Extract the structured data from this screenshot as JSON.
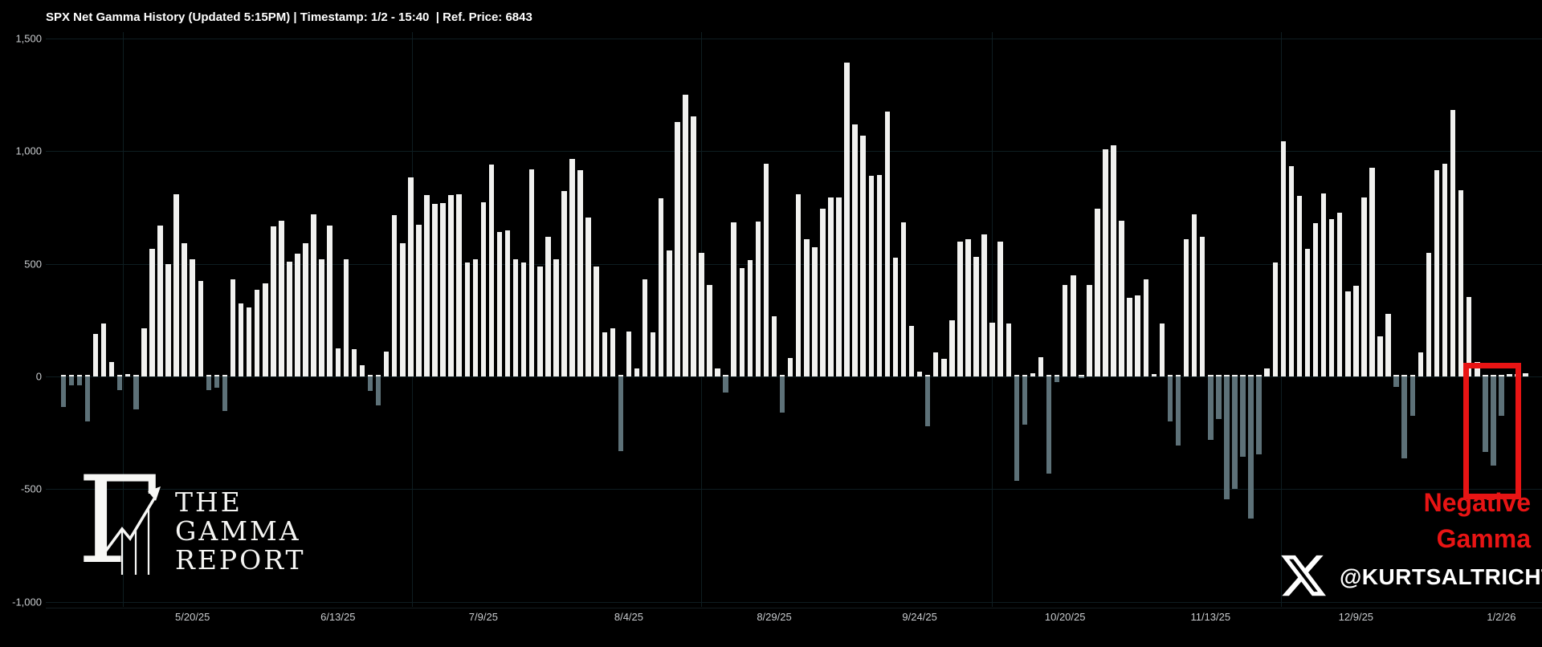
{
  "title": "SPX Net Gamma History (Updated 5:15PM) | Timestamp: 1/2 - 15:40  | Ref. Price: 6843",
  "watermark": {
    "line1": "THE",
    "line2": "GAMMA",
    "line3": "REPORT"
  },
  "annotation": {
    "line1": "Negative",
    "line2": "Gamma"
  },
  "handle": "@KURTSALTRICHTER",
  "colors": {
    "background": "#000000",
    "positive_bar": "#f1f1ef",
    "negative_bar": "#5d7178",
    "grid": "#0e1d21",
    "axis_label": "#c8cbce",
    "highlight_red": "#e81414",
    "title_text": "#ffffff"
  },
  "chart_data": {
    "type": "bar",
    "title": "SPX Net Gamma History",
    "xlabel": "",
    "ylabel": "Net Gamma",
    "ylim": [
      -1000,
      1500
    ],
    "grid": true,
    "yticks": [
      {
        "value": 1500,
        "label": "1,500"
      },
      {
        "value": 1000,
        "label": "1,000"
      },
      {
        "value": 500,
        "label": "500"
      },
      {
        "value": 0,
        "label": "0"
      },
      {
        "value": -500,
        "label": "-500"
      },
      {
        "value": -1000,
        "label": "-1,000"
      }
    ],
    "x_labels": [
      {
        "index": 16,
        "label": "5/20/25"
      },
      {
        "index": 34,
        "label": "6/13/25"
      },
      {
        "index": 52,
        "label": "7/9/25"
      },
      {
        "index": 70,
        "label": "8/4/25"
      },
      {
        "index": 88,
        "label": "8/29/25"
      },
      {
        "index": 106,
        "label": "9/24/25"
      },
      {
        "index": 124,
        "label": "10/20/25"
      },
      {
        "index": 142,
        "label": "11/13/25"
      },
      {
        "index": 160,
        "label": "12/9/25"
      },
      {
        "index": 178,
        "label": "1/2/26"
      }
    ],
    "values": [
      -135,
      -40,
      -40,
      -200,
      190,
      235,
      65,
      -60,
      10,
      -145,
      215,
      565,
      670,
      500,
      810,
      590,
      520,
      425,
      -60,
      -50,
      -155,
      430,
      325,
      305,
      385,
      415,
      665,
      690,
      510,
      545,
      590,
      720,
      520,
      670,
      125,
      520,
      120,
      50,
      -65,
      -130,
      110,
      715,
      590,
      885,
      675,
      805,
      765,
      770,
      805,
      810,
      505,
      520,
      775,
      940,
      640,
      650,
      520,
      505,
      920,
      490,
      620,
      520,
      823,
      965,
      915,
      705,
      490,
      195,
      215,
      -330,
      200,
      35,
      430,
      195,
      790,
      560,
      1130,
      1250,
      1155,
      548,
      408,
      35,
      -70,
      685,
      480,
      518,
      687,
      943,
      267,
      -160,
      81,
      808,
      610,
      575,
      745,
      795,
      795,
      1395,
      1120,
      1070,
      890,
      895,
      1175,
      528,
      685,
      225,
      22,
      -220,
      108,
      80,
      250,
      600,
      610,
      530,
      630,
      240,
      600,
      235,
      -465,
      -215,
      15,
      85,
      -430,
      -25,
      405,
      450,
      -8,
      408,
      745,
      1010,
      1025,
      690,
      350,
      360,
      430,
      10,
      235,
      -200,
      -305,
      610,
      719,
      620,
      -280,
      -190,
      -545,
      -500,
      -355,
      -630,
      -345,
      35,
      507,
      1044,
      933,
      801,
      566,
      679,
      812,
      700,
      726,
      376,
      403,
      794,
      925,
      179,
      279,
      -47,
      -365,
      -175,
      108,
      549,
      915,
      944,
      1184,
      828,
      354,
      65,
      -335,
      -395,
      -175,
      10,
      12,
      15
    ],
    "highlight": {
      "start_index": 175,
      "end_index": 181,
      "label": "Negative Gamma"
    },
    "legend": null
  }
}
